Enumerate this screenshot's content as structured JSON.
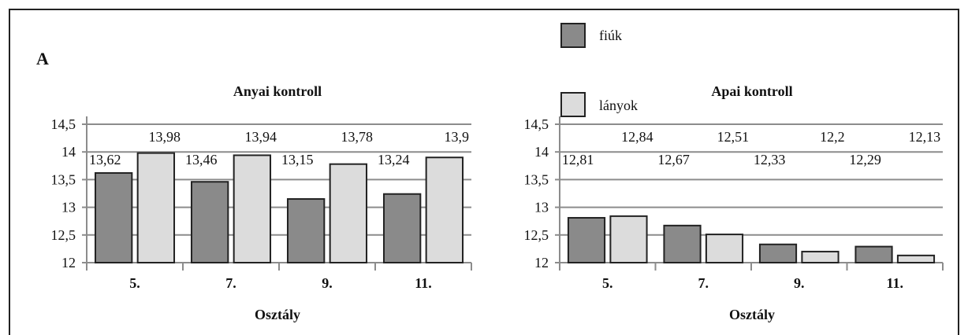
{
  "panel_letter": "A",
  "legend": [
    {
      "label": "fiúk",
      "color": "#8a8a8a"
    },
    {
      "label": "lányok",
      "color": "#dcdcdc"
    }
  ],
  "chart_data": [
    {
      "type": "bar",
      "title": "Anyai kontroll",
      "xlabel": "Osztály",
      "ylabel": "",
      "categories": [
        "5.",
        "7.",
        "9.",
        "11."
      ],
      "ylim": [
        12,
        14.5
      ],
      "yticks": [
        "12",
        "12,5",
        "13",
        "13,5",
        "14",
        "14,5"
      ],
      "grid": true,
      "series": [
        {
          "name": "fiúk",
          "values": [
            13.62,
            13.46,
            13.15,
            13.24
          ],
          "labels": [
            "13,62",
            "13,46",
            "13,15",
            "13,24"
          ]
        },
        {
          "name": "lányok",
          "values": [
            13.98,
            13.94,
            13.78,
            13.9
          ],
          "labels": [
            "13,98",
            "13,94",
            "13,78",
            "13,9"
          ]
        }
      ]
    },
    {
      "type": "bar",
      "title": "Apai kontroll",
      "xlabel": "Osztály",
      "ylabel": "",
      "categories": [
        "5.",
        "7.",
        "9.",
        "11."
      ],
      "ylim": [
        12,
        14.5
      ],
      "yticks": [
        "12",
        "12,5",
        "13",
        "13,5",
        "14",
        "14,5"
      ],
      "grid": true,
      "series": [
        {
          "name": "fiúk",
          "values": [
            12.81,
            12.67,
            12.33,
            12.29
          ],
          "labels": [
            "12,81",
            "12,67",
            "12,33",
            "12,29"
          ]
        },
        {
          "name": "lányok",
          "values": [
            12.84,
            12.51,
            12.2,
            12.13
          ],
          "labels": [
            "12,84",
            "12,51",
            "12,2",
            "12,13"
          ]
        }
      ]
    }
  ]
}
